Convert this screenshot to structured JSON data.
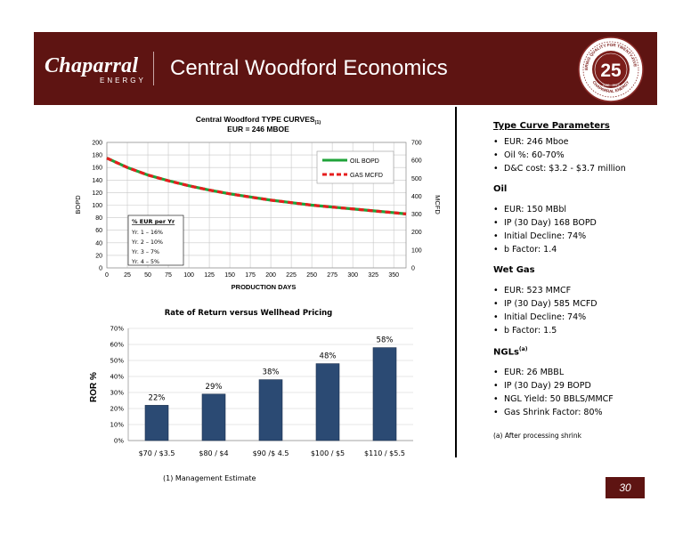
{
  "header": {
    "logo_text": "Chaparral",
    "logo_sub": "ENERGY",
    "title": "Central Woodford Economics",
    "seal_text_top": "DELIVERING QUALITY FOR TWENTY-FIVE YEARS",
    "seal_number": "25",
    "seal_text_bottom": "CHAPARRAL ENERGY",
    "seal_years": "1988 · 2013"
  },
  "chart_data": [
    {
      "type": "line",
      "title": "Central Woodford TYPE CURVES",
      "title_sub": "(1)",
      "subtitle": "EUR = 246 MBOE",
      "xlabel": "PRODUCTION DAYS",
      "ylabel": "BOPD",
      "y2label": "MCFD",
      "xlim": [
        0,
        365
      ],
      "ylim": [
        0,
        200
      ],
      "y2lim": [
        0,
        700
      ],
      "x_ticks": [
        0,
        25,
        50,
        75,
        100,
        125,
        150,
        175,
        200,
        225,
        250,
        275,
        300,
        325,
        350
      ],
      "y_ticks": [
        0,
        20,
        40,
        60,
        80,
        100,
        120,
        140,
        160,
        180,
        200
      ],
      "y2_ticks": [
        0,
        100,
        200,
        300,
        400,
        500,
        600,
        700
      ],
      "legend_position": "top-right",
      "series": [
        {
          "name": "OIL BOPD",
          "color": "#1fa33a",
          "axis": "left",
          "x": [
            0,
            25,
            50,
            75,
            100,
            125,
            150,
            175,
            200,
            225,
            250,
            275,
            300,
            325,
            350,
            365
          ],
          "values": [
            175,
            160,
            148,
            139,
            131,
            124,
            118,
            113,
            108,
            104,
            100,
            97,
            94,
            91,
            88,
            86
          ]
        },
        {
          "name": "GAS MCFD",
          "color": "#e61e1e",
          "axis": "right",
          "x": [
            0,
            25,
            50,
            75,
            100,
            125,
            150,
            175,
            200,
            225,
            250,
            275,
            300,
            325,
            350,
            365
          ],
          "values": [
            612,
            560,
            518,
            486,
            458,
            434,
            413,
            395,
            378,
            364,
            350,
            339,
            329,
            318,
            308,
            301
          ]
        }
      ],
      "annotation": {
        "title": "% EUR per Yr",
        "lines": [
          "Yr. 1 – 16%",
          "Yr. 2 – 10%",
          "Yr. 3 –  7%",
          "Yr. 4 –  5%"
        ]
      },
      "grid": true
    },
    {
      "type": "bar",
      "title": "Rate of Return versus Wellhead Pricing",
      "ylabel": "ROR %",
      "categories": [
        "$70 / $3.5",
        "$80 / $4",
        "$90 /$ 4.5",
        "$100 / $5",
        "$110 / $5.5"
      ],
      "values": [
        22,
        29,
        38,
        48,
        58
      ],
      "data_labels": [
        "22%",
        "29%",
        "38%",
        "48%",
        "58%"
      ],
      "ylim": [
        0,
        70
      ],
      "y_ticks": [
        "0%",
        "10%",
        "20%",
        "30%",
        "40%",
        "50%",
        "60%",
        "70%"
      ],
      "bar_color": "#2b4a73",
      "grid": true
    }
  ],
  "note": "(1) Management Estimate",
  "params": {
    "type_curve": {
      "heading": "Type Curve Parameters",
      "items": [
        "EUR: 246 Mboe",
        "Oil %: 60-70%",
        "D&C cost: $3.2 - $3.7 million"
      ]
    },
    "oil": {
      "heading": "Oil",
      "items": [
        "EUR: 150 MBbl",
        "IP (30 Day) 168 BOPD",
        "Initial Decline: 74%",
        "b Factor: 1.4"
      ]
    },
    "wet_gas": {
      "heading": "Wet Gas",
      "items": [
        "EUR: 523 MMCF",
        "IP (30 Day) 585 MCFD",
        "Initial Decline: 74%",
        "b Factor: 1.5"
      ]
    },
    "ngls": {
      "heading": "NGLs",
      "heading_sup": "(a)",
      "items": [
        "EUR: 26 MBBL",
        "IP (30 Day) 29 BOPD",
        "NGL Yield: 50 BBLS/MMCF",
        "Gas Shrink Factor: 80%"
      ]
    },
    "footnote": "(a) After processing shrink"
  },
  "page_number": "30",
  "colors": {
    "header": "#5e1412",
    "oil": "#1fa33a",
    "gas": "#e61e1e",
    "bar": "#2b4a73"
  }
}
